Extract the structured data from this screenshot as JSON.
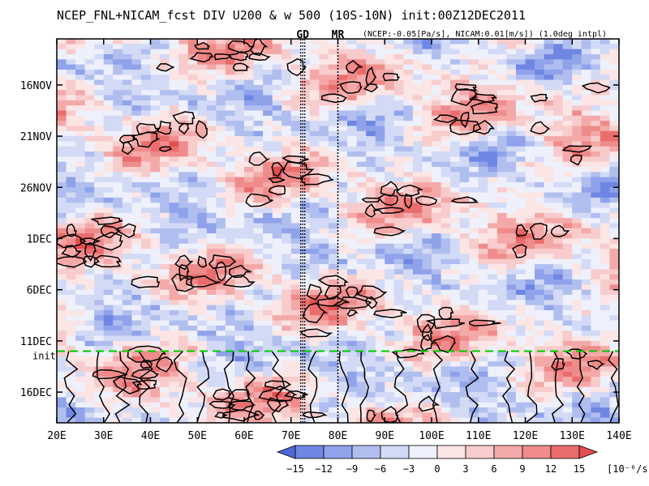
{
  "chart_data": {
    "type": "heatmap",
    "title": "NCEP_FNL+NICAM_fcst DIV U200 & w 500 (10S-10N) init:00Z12DEC2011",
    "subtitle": "(NCEP:-0.05[Pa/s], NICAM:0.01[m/s]) (1.0deg intpl)",
    "x_axis": {
      "ticks": [
        20,
        30,
        40,
        50,
        60,
        70,
        80,
        90,
        100,
        110,
        120,
        130,
        140
      ],
      "tick_labels": [
        "20E",
        "30E",
        "40E",
        "50E",
        "60E",
        "70E",
        "80E",
        "90E",
        "100E",
        "110E",
        "120E",
        "130E",
        "140E"
      ],
      "range": [
        20,
        140
      ]
    },
    "y_axis": {
      "tick_labels": [
        "16NOV",
        "21NOV",
        "26NOV",
        "1DEC",
        "6DEC",
        "11DEC",
        "16DEC"
      ],
      "tick_days": [
        16,
        21,
        26,
        31,
        36,
        41,
        46
      ],
      "range_days": [
        11.5,
        49.0
      ]
    },
    "init_line": {
      "label": "init",
      "day": 42.0,
      "color": "#00cc00"
    },
    "markers": [
      {
        "label": "GD",
        "lon": 72.5,
        "color": "#ff0000"
      },
      {
        "label": "MR",
        "lon": 80.0,
        "color": "#ff0000"
      }
    ],
    "colorbar": {
      "levels": [
        -15,
        -12,
        -9,
        -6,
        -3,
        0,
        3,
        6,
        9,
        12,
        15
      ],
      "level_labels": [
        "−15",
        "−12",
        "−9",
        "−6",
        "−3",
        "0",
        "3",
        "6",
        "9",
        "12",
        "15"
      ],
      "colors": [
        "#4f68d9",
        "#6f86e3",
        "#8fa2ea",
        "#b0beef",
        "#d2daf6",
        "#eef0fb",
        "#fbe5e5",
        "#f8cccc",
        "#f4a9a9",
        "#ef8b8b",
        "#ea6d6d",
        "#e34f4f"
      ],
      "unit": "[10⁻⁶/s]"
    }
  }
}
